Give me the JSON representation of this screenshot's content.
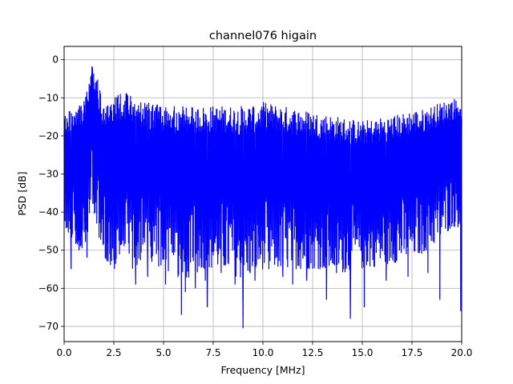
{
  "chart_data": {
    "type": "line",
    "title": "channel076 higain",
    "xlabel": "Frequency [MHz]",
    "ylabel": "PSD [dB]",
    "xlim": [
      0,
      20
    ],
    "ylim": [
      -74,
      3.5
    ],
    "x_ticks": [
      0,
      2.5,
      5,
      7.5,
      10,
      12.5,
      15,
      17.5,
      20
    ],
    "x_tick_labels": [
      "0.0",
      "2.5",
      "5.0",
      "7.5",
      "10.0",
      "12.5",
      "15.0",
      "17.5",
      "20.0"
    ],
    "y_ticks": [
      0,
      -10,
      -20,
      -30,
      -40,
      -50,
      -60,
      -70
    ],
    "y_tick_labels": [
      "0",
      "−10",
      "−20",
      "−30",
      "−40",
      "−50",
      "−60",
      "−70"
    ],
    "grid": true,
    "series": [
      {
        "color": "#0000ff",
        "x": [
          0.0,
          0.5,
          1.0,
          1.2,
          1.4,
          1.6,
          1.8,
          2.0,
          2.5,
          3.0,
          3.5,
          4.0,
          5.0,
          6.0,
          7.0,
          8.0,
          9.0,
          10.0,
          11.0,
          12.0,
          13.0,
          14.0,
          15.0,
          16.0,
          17.0,
          17.5,
          18.0,
          18.5,
          19.0,
          19.5,
          20.0
        ],
        "upper": [
          -14,
          -13,
          -10,
          -5,
          0,
          -3,
          -8,
          -11,
          -10,
          -8,
          -10,
          -11,
          -12,
          -12,
          -12,
          -12,
          -12,
          -11,
          -12,
          -13,
          -14,
          -15,
          -16,
          -15,
          -14,
          -13,
          -13,
          -12,
          -11,
          -10,
          -10
        ],
        "lower": [
          -44,
          -48,
          -50,
          -45,
          -38,
          -42,
          -48,
          -52,
          -55,
          -55,
          -55,
          -52,
          -55,
          -58,
          -55,
          -55,
          -58,
          -55,
          -55,
          -55,
          -55,
          -56,
          -55,
          -54,
          -53,
          -52,
          -51,
          -49,
          -47,
          -44,
          -44
        ],
        "dips": [
          {
            "x": 0.35,
            "y": -55
          },
          {
            "x": 0.75,
            "y": -50
          },
          {
            "x": 1.15,
            "y": -52
          },
          {
            "x": 2.3,
            "y": -51
          },
          {
            "x": 3.6,
            "y": -59
          },
          {
            "x": 4.2,
            "y": -57
          },
          {
            "x": 5.1,
            "y": -59
          },
          {
            "x": 5.9,
            "y": -67
          },
          {
            "x": 6.1,
            "y": -61
          },
          {
            "x": 6.6,
            "y": -60
          },
          {
            "x": 7.1,
            "y": -58
          },
          {
            "x": 7.2,
            "y": -65
          },
          {
            "x": 7.9,
            "y": -56
          },
          {
            "x": 8.6,
            "y": -59
          },
          {
            "x": 9.0,
            "y": -70.5
          },
          {
            "x": 9.6,
            "y": -58
          },
          {
            "x": 10.3,
            "y": -55
          },
          {
            "x": 11.0,
            "y": -57
          },
          {
            "x": 11.5,
            "y": -59
          },
          {
            "x": 12.2,
            "y": -58
          },
          {
            "x": 13.2,
            "y": -63
          },
          {
            "x": 13.7,
            "y": -56
          },
          {
            "x": 14.4,
            "y": -68
          },
          {
            "x": 15.1,
            "y": -65
          },
          {
            "x": 16.2,
            "y": -58
          },
          {
            "x": 17.3,
            "y": -57
          },
          {
            "x": 18.3,
            "y": -56
          },
          {
            "x": 18.9,
            "y": -63
          },
          {
            "x": 19.95,
            "y": -66
          }
        ]
      }
    ]
  }
}
